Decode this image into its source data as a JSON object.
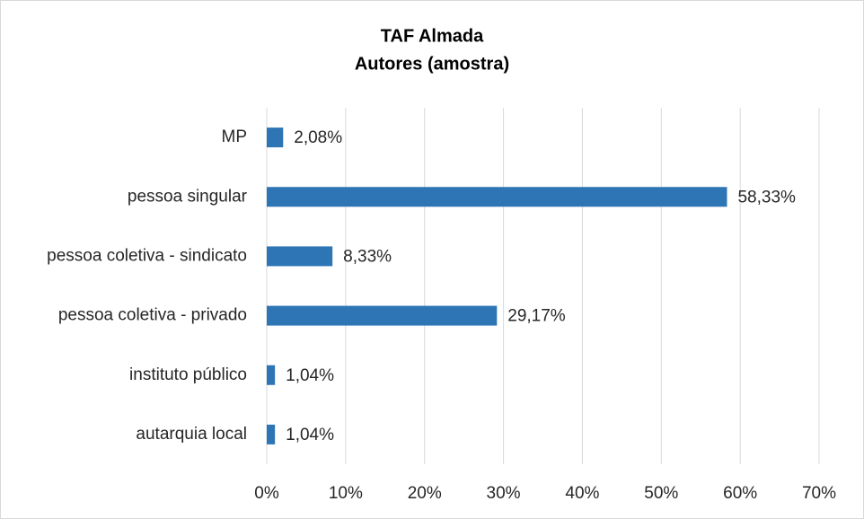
{
  "chart_data": {
    "type": "hbar",
    "title": [
      "TAF Almada",
      "Autores (amostra)"
    ],
    "categories": [
      "MP",
      "pessoa singular",
      "pessoa coletiva - sindicato",
      "pessoa coletiva - privado",
      "instituto público",
      "autarquia local"
    ],
    "values": [
      2.08,
      58.33,
      8.33,
      29.17,
      1.04,
      1.04
    ],
    "value_labels": [
      "2,08%",
      "58,33%",
      "8,33%",
      "29,17%",
      "1,04%",
      "1,04%"
    ],
    "color": "#2e75b6",
    "xlim": [
      0,
      70
    ],
    "xticks": [
      {
        "value": 0,
        "label": "0%"
      },
      {
        "value": 10,
        "label": "10%"
      },
      {
        "value": 20,
        "label": "20%"
      },
      {
        "value": 30,
        "label": "30%"
      },
      {
        "value": 40,
        "label": "40%"
      },
      {
        "value": 50,
        "label": "50%"
      },
      {
        "value": 60,
        "label": "60%"
      },
      {
        "value": 70,
        "label": "70%"
      }
    ],
    "grid": true
  }
}
